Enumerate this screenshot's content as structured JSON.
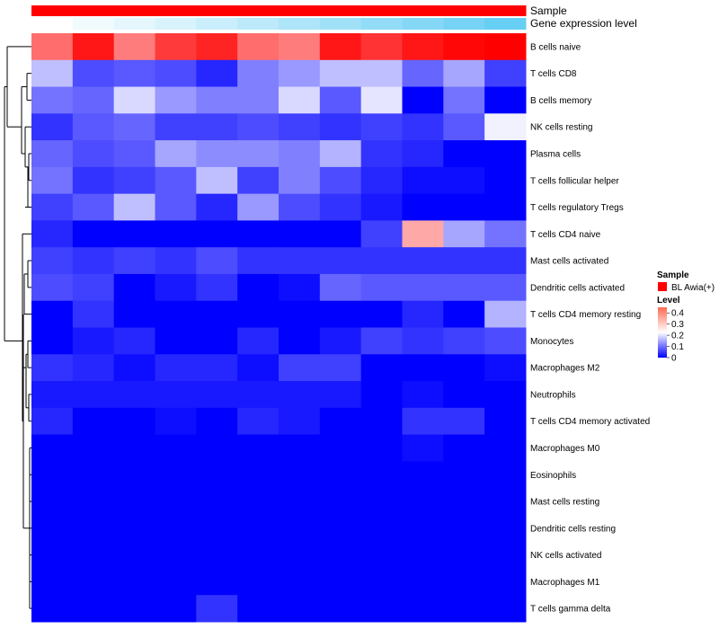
{
  "chart_data": {
    "type": "heatmap",
    "title": "",
    "annotations": {
      "sample_label": "Sample",
      "gene_label": "Gene expression level",
      "sample_color": "#ff0000",
      "gene_levels": [
        0.0,
        0.08,
        0.15,
        0.22,
        0.3,
        0.38,
        0.46,
        0.54,
        0.62,
        0.7,
        0.78,
        0.86,
        1.0
      ],
      "gene_low_color": "#ffffff",
      "gene_high_color": "#4fc7f2"
    },
    "rows": [
      "B cells naive",
      "T cells CD8",
      "B cells memory",
      "NK cells resting",
      "Plasma cells",
      "T cells follicular helper",
      "T cells regulatory  Tregs",
      "T cells CD4 naive",
      "Mast cells activated",
      "Dendritic cells activated",
      "T cells CD4 memory resting",
      "Monocytes",
      "Macrophages M2",
      "Neutrophils",
      "T cells CD4 memory activated",
      "Macrophages M0",
      "Eosinophils",
      "Mast cells resting",
      "Dendritic cells resting",
      "NK cells activated",
      "Macrophages M1",
      "T cells gamma delta"
    ],
    "n_columns": 12,
    "values": [
      [
        0.4,
        0.52,
        0.38,
        0.47,
        0.5,
        0.4,
        0.38,
        0.52,
        0.48,
        0.52,
        0.54,
        0.55
      ],
      [
        0.15,
        0.06,
        0.07,
        0.06,
        0.03,
        0.1,
        0.12,
        0.15,
        0.15,
        0.08,
        0.13,
        0.05
      ],
      [
        0.09,
        0.08,
        0.17,
        0.12,
        0.1,
        0.1,
        0.17,
        0.07,
        0.18,
        0.0,
        0.09,
        0.0
      ],
      [
        0.04,
        0.07,
        0.08,
        0.05,
        0.05,
        0.06,
        0.05,
        0.04,
        0.05,
        0.04,
        0.07,
        0.19
      ],
      [
        0.08,
        0.06,
        0.07,
        0.13,
        0.11,
        0.11,
        0.1,
        0.14,
        0.04,
        0.03,
        0.0,
        0.0
      ],
      [
        0.09,
        0.04,
        0.05,
        0.07,
        0.15,
        0.05,
        0.1,
        0.06,
        0.03,
        0.01,
        0.01,
        0.0
      ],
      [
        0.05,
        0.07,
        0.15,
        0.07,
        0.03,
        0.12,
        0.06,
        0.04,
        0.02,
        0.0,
        0.0,
        0.0
      ],
      [
        0.03,
        0.0,
        0.0,
        0.0,
        0.0,
        0.0,
        0.0,
        0.0,
        0.05,
        0.32,
        0.13,
        0.09
      ],
      [
        0.05,
        0.04,
        0.05,
        0.04,
        0.06,
        0.04,
        0.04,
        0.04,
        0.04,
        0.04,
        0.04,
        0.04
      ],
      [
        0.06,
        0.05,
        0.0,
        0.02,
        0.04,
        0.0,
        0.01,
        0.08,
        0.07,
        0.07,
        0.07,
        0.07
      ],
      [
        0.0,
        0.04,
        0.0,
        0.0,
        0.0,
        0.0,
        0.0,
        0.0,
        0.0,
        0.03,
        0.0,
        0.14
      ],
      [
        0.0,
        0.02,
        0.03,
        0.0,
        0.0,
        0.03,
        0.0,
        0.02,
        0.05,
        0.04,
        0.05,
        0.06
      ],
      [
        0.04,
        0.03,
        0.01,
        0.03,
        0.03,
        0.01,
        0.05,
        0.05,
        0.0,
        0.0,
        0.0,
        0.01
      ],
      [
        0.02,
        0.02,
        0.02,
        0.02,
        0.02,
        0.02,
        0.02,
        0.02,
        0.0,
        0.01,
        0.0,
        0.0
      ],
      [
        0.03,
        0.0,
        0.0,
        0.01,
        0.0,
        0.03,
        0.02,
        0.0,
        0.0,
        0.04,
        0.04,
        0.0
      ],
      [
        0.0,
        0.0,
        0.0,
        0.0,
        0.0,
        0.0,
        0.0,
        0.0,
        0.0,
        0.01,
        0.0,
        0.0
      ],
      [
        0.0,
        0.0,
        0.0,
        0.0,
        0.0,
        0.0,
        0.0,
        0.0,
        0.0,
        0.0,
        0.0,
        0.0
      ],
      [
        0.0,
        0.0,
        0.0,
        0.0,
        0.0,
        0.0,
        0.0,
        0.0,
        0.0,
        0.0,
        0.0,
        0.0
      ],
      [
        0.0,
        0.0,
        0.0,
        0.0,
        0.0,
        0.0,
        0.0,
        0.0,
        0.0,
        0.0,
        0.0,
        0.0
      ],
      [
        0.0,
        0.0,
        0.0,
        0.0,
        0.0,
        0.0,
        0.0,
        0.0,
        0.0,
        0.0,
        0.0,
        0.0
      ],
      [
        0.0,
        0.0,
        0.0,
        0.0,
        0.0,
        0.0,
        0.0,
        0.0,
        0.0,
        0.0,
        0.0,
        0.0
      ],
      [
        0.0,
        0.0,
        0.0,
        0.0,
        0.04,
        0.0,
        0.0,
        0.0,
        0.0,
        0.0,
        0.0,
        0.0
      ]
    ],
    "color_scale": {
      "min": 0,
      "max": 0.55,
      "stops": [
        {
          "value": 0,
          "color": "#0000ff"
        },
        {
          "value": 0.2,
          "color": "#ffffff"
        },
        {
          "value": 0.55,
          "color": "#ff0000"
        }
      ]
    },
    "legend": {
      "sample_title": "Sample",
      "sample_entry": "BL Awia(+)",
      "level_title": "Level",
      "level_ticks": [
        "0.4",
        "0.3",
        "0.2",
        "0.1",
        "0"
      ],
      "level_tick_values": [
        0.4,
        0.3,
        0.2,
        0.1,
        0
      ],
      "placement": "right"
    },
    "dendrogram": "row"
  }
}
